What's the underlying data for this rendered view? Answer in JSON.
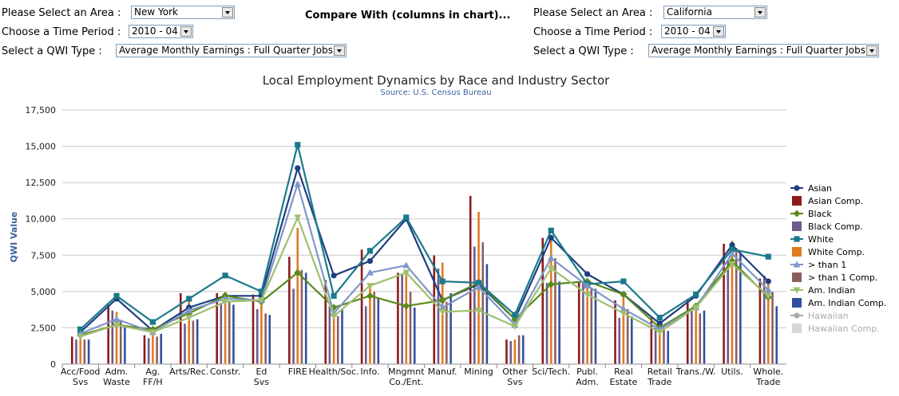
{
  "controls": {
    "left": {
      "area_label": "Please Select an Area :",
      "area_value": "New York",
      "period_label": "Choose a Time Period :",
      "period_value": "2010 - 04",
      "qwi_label": "Select a QWI Type :",
      "qwi_value": "Average Monthly Earnings : Full Quarter Jobs"
    },
    "compare_label": "Compare With (columns in chart)...",
    "right": {
      "area_label": "Please Select an Area :",
      "area_value": "California",
      "period_label": "Choose a Time Period :",
      "period_value": "2010 - 04",
      "qwi_label": "Select a QWI Type :",
      "qwi_value": "Average Monthly Earnings : Full Quarter Jobs"
    }
  },
  "chart_data": {
    "type": "bar",
    "title": "Local Employment Dynamics by Race and Industry Sector",
    "subtitle": "Source: U.S. Census Bureau",
    "ylabel": "QWI Value",
    "xlabel": "",
    "ylim": [
      0,
      17500
    ],
    "yticks": [
      "0",
      "2,500",
      "5,000",
      "7,500",
      "10,000",
      "12,500",
      "15,000",
      "17,500"
    ],
    "grid": true,
    "legend_position": "right",
    "categories": [
      "Acc/Food Svs",
      "Adm. Waste",
      "Ag. FF/H",
      "Arts/Rec.",
      "Constr.",
      "Ed Svs",
      "FIRE",
      "Health/Soc.",
      "Info.",
      "Mngmnt Co./Ent.",
      "Manuf.",
      "Mining",
      "Other Svs",
      "Sci/Tech.",
      "Publ. Adm.",
      "Real Estate",
      "Retail Trade",
      "Trans./W.",
      "Utils.",
      "Whole. Trade"
    ],
    "category_labels": [
      [
        "Acc/Food",
        "Svs"
      ],
      [
        "Adm.",
        "Waste"
      ],
      [
        "Ag.",
        "FF/H"
      ],
      [
        "Arts/Rec."
      ],
      [
        "Constr."
      ],
      [
        "Ed",
        "Svs"
      ],
      [
        "FIRE"
      ],
      [
        "Health/Soc."
      ],
      [
        "Info."
      ],
      [
        "Mngmnt",
        "Co./Ent."
      ],
      [
        "Manuf."
      ],
      [
        "Mining"
      ],
      [
        "Other",
        "Svs"
      ],
      [
        "Sci/Tech."
      ],
      [
        "Publ.",
        "Adm."
      ],
      [
        "Real",
        "Estate"
      ],
      [
        "Retail",
        "Trade"
      ],
      [
        "Trans./W."
      ],
      [
        "Utils."
      ],
      [
        "Whole.",
        "Trade"
      ]
    ],
    "line_series": [
      {
        "name": "Asian",
        "color": "#1f3f7f",
        "marker": "circle",
        "values": [
          2200,
          4500,
          2300,
          3900,
          4700,
          4700,
          13500,
          6100,
          7100,
          10000,
          4400,
          5500,
          3100,
          8700,
          6200,
          4800,
          2800,
          4700,
          8200,
          5700
        ]
      },
      {
        "name": "Black",
        "color": "#5a8a1a",
        "marker": "diamond",
        "values": [
          2000,
          2700,
          2400,
          3500,
          4700,
          4300,
          6300,
          3900,
          4700,
          4000,
          4400,
          5600,
          3100,
          5500,
          5700,
          4800,
          2500,
          4000,
          7100,
          4600
        ]
      },
      {
        "name": "White",
        "color": "#1a7a8c",
        "marker": "square",
        "values": [
          2400,
          4700,
          2900,
          4500,
          6100,
          5000,
          15100,
          4700,
          7800,
          10100,
          5700,
          5600,
          3400,
          9200,
          5500,
          5700,
          3200,
          4800,
          7900,
          7400
        ]
      },
      {
        "name": "> than 1",
        "color": "#7f97c8",
        "marker": "triangle",
        "values": [
          2100,
          3100,
          2200,
          3700,
          4500,
          4400,
          12400,
          3500,
          6300,
          6800,
          3900,
          5300,
          2700,
          7300,
          5400,
          3800,
          2400,
          3900,
          7600,
          5100
        ]
      },
      {
        "name": "Am. Indian",
        "color": "#9fbf6f",
        "marker": "triangle-down",
        "values": [
          1900,
          2700,
          2200,
          3200,
          4300,
          4400,
          10100,
          3300,
          5400,
          6300,
          3600,
          3700,
          2600,
          6600,
          4800,
          3500,
          2200,
          3900,
          6900,
          4700
        ]
      },
      {
        "name": "Hawaiian",
        "color": "#aaaaaa",
        "marker": "circle",
        "values": [
          null,
          null,
          null,
          null,
          null,
          null,
          null,
          null,
          null,
          null,
          null,
          null,
          null,
          null,
          null,
          null,
          null,
          null,
          null,
          null
        ]
      }
    ],
    "column_series": [
      {
        "name": "Asian Comp.",
        "color": "#8b1a1a",
        "values": [
          1900,
          4100,
          2000,
          4900,
          4900,
          4800,
          7400,
          5800,
          7900,
          6300,
          7500,
          11600,
          1700,
          8700,
          5700,
          4400,
          3200,
          4500,
          8300,
          5900
        ]
      },
      {
        "name": "Black Comp.",
        "color": "#6e5a8c",
        "values": [
          1700,
          3700,
          1800,
          2800,
          4200,
          3800,
          5200,
          4000,
          4000,
          6200,
          6600,
          8100,
          1600,
          5600,
          5700,
          3200,
          2500,
          3800,
          7100,
          6100
        ]
      },
      {
        "name": "White Comp.",
        "color": "#e07b20",
        "values": [
          1800,
          3600,
          2100,
          4700,
          5000,
          4600,
          9400,
          3400,
          5300,
          6500,
          7000,
          10500,
          1700,
          8900,
          5500,
          4600,
          2700,
          4100,
          8500,
          5800
        ]
      },
      {
        "name": "> than 1 Comp.",
        "color": "#8c5f5f",
        "values": [
          1700,
          3000,
          1900,
          3000,
          4300,
          3500,
          6500,
          3300,
          5000,
          5000,
          4300,
          8400,
          2000,
          7300,
          5200,
          3800,
          2500,
          3500,
          8000,
          5000
        ]
      },
      {
        "name": "Am. Indian Comp.",
        "color": "#3050a0",
        "values": [
          1700,
          2600,
          2100,
          3100,
          4100,
          3400,
          6300,
          3800,
          4600,
          3900,
          4900,
          6900,
          2000,
          5700,
          5200,
          3300,
          2300,
          3700,
          7600,
          4000
        ]
      },
      {
        "name": "Hawaiian Comp.",
        "color": "#bbbbbb",
        "values": [
          null,
          null,
          null,
          null,
          null,
          null,
          null,
          null,
          null,
          null,
          null,
          null,
          null,
          null,
          null,
          null,
          null,
          null,
          null,
          null
        ]
      }
    ],
    "legend": [
      {
        "label": "Asian",
        "color": "#1f3f7f",
        "kind": "line",
        "marker": "circle"
      },
      {
        "label": "Asian Comp.",
        "color": "#8b1a1a",
        "kind": "column"
      },
      {
        "label": "Black",
        "color": "#5a8a1a",
        "kind": "line",
        "marker": "diamond"
      },
      {
        "label": "Black Comp.",
        "color": "#6e5a8c",
        "kind": "column"
      },
      {
        "label": "White",
        "color": "#1a7a8c",
        "kind": "line",
        "marker": "square"
      },
      {
        "label": "White Comp.",
        "color": "#e07b20",
        "kind": "column"
      },
      {
        "label": "> than 1",
        "color": "#7f97c8",
        "kind": "line",
        "marker": "triangle"
      },
      {
        "label": "> than 1 Comp.",
        "color": "#8c5f5f",
        "kind": "column"
      },
      {
        "label": "Am. Indian",
        "color": "#9fbf6f",
        "kind": "line",
        "marker": "triangle-down"
      },
      {
        "label": "Am. Indian Comp.",
        "color": "#3050a0",
        "kind": "column"
      },
      {
        "label": "Hawaiian",
        "color": "#aaaaaa",
        "kind": "line",
        "marker": "circle",
        "dimmed": true
      },
      {
        "label": "Hawaiian Comp.",
        "color": "#bbbbbb",
        "kind": "column",
        "dimmed": true
      }
    ]
  }
}
